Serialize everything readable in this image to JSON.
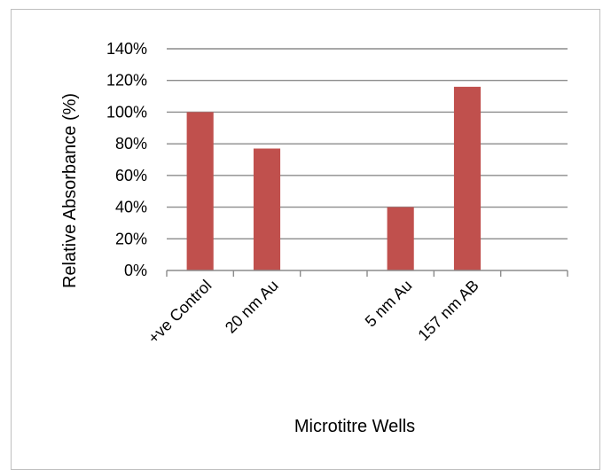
{
  "chart_data": {
    "type": "bar",
    "title": "",
    "xlabel": "Microtitre Wells",
    "ylabel": "Relative Absorbance (%)",
    "ylim": [
      0,
      140
    ],
    "y_ticks": [
      "0%",
      "20%",
      "40%",
      "60%",
      "80%",
      "100%",
      "120%",
      "140%"
    ],
    "grid": true,
    "categories": [
      "+ve Control",
      "20 nm Au",
      "",
      "5 nm Au",
      "157 nm AB",
      ""
    ],
    "values": [
      100,
      77,
      0,
      40,
      116,
      0
    ],
    "bar_color": "#c0504d",
    "gridline_color": "#8c8c8c"
  }
}
